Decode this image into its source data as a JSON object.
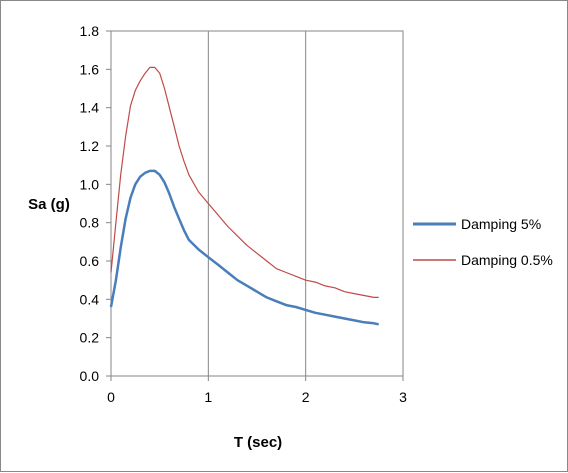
{
  "chart_data": {
    "type": "line",
    "xlabel": "T (sec)",
    "ylabel": "Sa (g)",
    "xlim": [
      0,
      3
    ],
    "ylim": [
      0,
      1.8
    ],
    "xticks": [
      "0",
      "1",
      "2",
      "3"
    ],
    "yticks": [
      "0.0",
      "0.2",
      "0.4",
      "0.6",
      "0.8",
      "1.0",
      "1.2",
      "1.4",
      "1.6",
      "1.8"
    ],
    "grid": "vertical",
    "legend_position": "right",
    "series": [
      {
        "name": "Damping 5%",
        "color": "#4a7ebb",
        "points": [
          [
            0.0,
            0.36
          ],
          [
            0.05,
            0.5
          ],
          [
            0.1,
            0.67
          ],
          [
            0.15,
            0.82
          ],
          [
            0.2,
            0.93
          ],
          [
            0.25,
            1.0
          ],
          [
            0.3,
            1.04
          ],
          [
            0.35,
            1.06
          ],
          [
            0.4,
            1.07
          ],
          [
            0.45,
            1.07
          ],
          [
            0.5,
            1.05
          ],
          [
            0.55,
            1.01
          ],
          [
            0.6,
            0.95
          ],
          [
            0.65,
            0.88
          ],
          [
            0.7,
            0.82
          ],
          [
            0.75,
            0.76
          ],
          [
            0.8,
            0.71
          ],
          [
            0.9,
            0.66
          ],
          [
            1.0,
            0.62
          ],
          [
            1.1,
            0.58
          ],
          [
            1.2,
            0.54
          ],
          [
            1.3,
            0.5
          ],
          [
            1.4,
            0.47
          ],
          [
            1.5,
            0.44
          ],
          [
            1.6,
            0.41
          ],
          [
            1.7,
            0.39
          ],
          [
            1.8,
            0.37
          ],
          [
            1.9,
            0.36
          ],
          [
            2.0,
            0.345
          ],
          [
            2.1,
            0.33
          ],
          [
            2.2,
            0.32
          ],
          [
            2.3,
            0.31
          ],
          [
            2.4,
            0.3
          ],
          [
            2.5,
            0.29
          ],
          [
            2.6,
            0.28
          ],
          [
            2.7,
            0.275
          ],
          [
            2.75,
            0.27
          ]
        ]
      },
      {
        "name": "Damping 0.5%",
        "color": "#be4b48",
        "points": [
          [
            0.0,
            0.54
          ],
          [
            0.05,
            0.8
          ],
          [
            0.1,
            1.05
          ],
          [
            0.15,
            1.25
          ],
          [
            0.2,
            1.41
          ],
          [
            0.25,
            1.49
          ],
          [
            0.3,
            1.54
          ],
          [
            0.35,
            1.58
          ],
          [
            0.4,
            1.61
          ],
          [
            0.45,
            1.61
          ],
          [
            0.5,
            1.58
          ],
          [
            0.55,
            1.5
          ],
          [
            0.6,
            1.4
          ],
          [
            0.65,
            1.3
          ],
          [
            0.7,
            1.2
          ],
          [
            0.75,
            1.12
          ],
          [
            0.8,
            1.05
          ],
          [
            0.9,
            0.96
          ],
          [
            1.0,
            0.9
          ],
          [
            1.1,
            0.84
          ],
          [
            1.2,
            0.78
          ],
          [
            1.3,
            0.73
          ],
          [
            1.4,
            0.68
          ],
          [
            1.5,
            0.64
          ],
          [
            1.6,
            0.6
          ],
          [
            1.7,
            0.56
          ],
          [
            1.8,
            0.54
          ],
          [
            1.9,
            0.52
          ],
          [
            2.0,
            0.5
          ],
          [
            2.1,
            0.49
          ],
          [
            2.2,
            0.47
          ],
          [
            2.3,
            0.46
          ],
          [
            2.4,
            0.44
          ],
          [
            2.5,
            0.43
          ],
          [
            2.6,
            0.42
          ],
          [
            2.7,
            0.41
          ],
          [
            2.75,
            0.41
          ]
        ]
      }
    ]
  }
}
